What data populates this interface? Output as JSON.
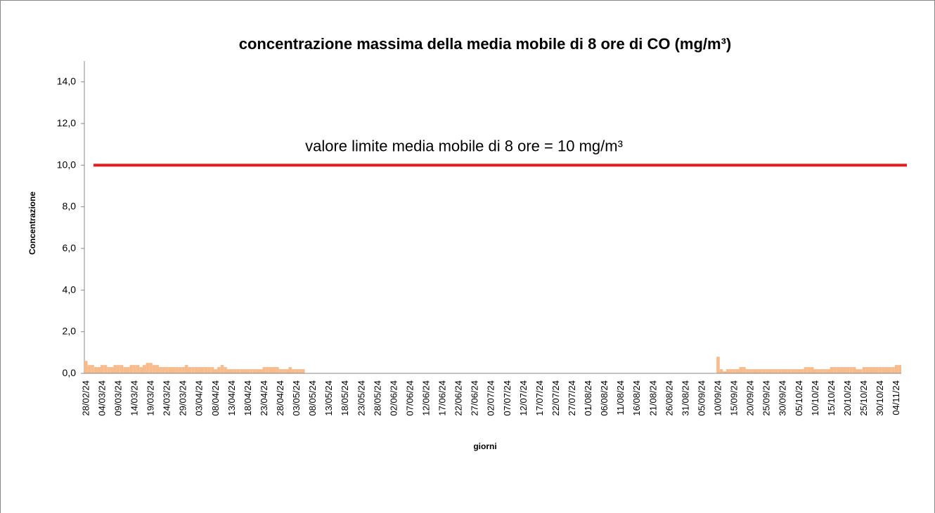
{
  "chart_data": {
    "type": "bar",
    "title": "concentrazione massima della media mobile di 8 ore di CO (mg/m³)",
    "x_label": "giorni",
    "y_label": "Concentrazione",
    "color": "#f8bc8c",
    "ylim": [
      0,
      15
    ],
    "yticks": [
      {
        "value": 0,
        "label": "0,0"
      },
      {
        "value": 2,
        "label": "2,0"
      },
      {
        "value": 4,
        "label": "4,0"
      },
      {
        "value": 6,
        "label": "6,0"
      },
      {
        "value": 8,
        "label": "8,0"
      },
      {
        "value": 10,
        "label": "10,0"
      },
      {
        "value": 12,
        "label": "12,0"
      },
      {
        "value": 14,
        "label": "14,0"
      }
    ],
    "limit": {
      "value": 10,
      "label": "valore limite media mobile di 8 ore = 10 mg/m³",
      "color": "#e41a1c"
    },
    "categories": [
      "28/02/24",
      null,
      null,
      null,
      null,
      "04/03/24",
      null,
      null,
      null,
      null,
      "09/03/24",
      null,
      null,
      null,
      null,
      "14/03/24",
      null,
      null,
      null,
      null,
      "19/03/24",
      null,
      null,
      null,
      null,
      "24/03/24",
      null,
      null,
      null,
      null,
      "29/03/24",
      null,
      null,
      null,
      null,
      "03/04/24",
      null,
      null,
      null,
      null,
      "08/04/24",
      null,
      null,
      null,
      null,
      "13/04/24",
      null,
      null,
      null,
      null,
      "18/04/24",
      null,
      null,
      null,
      null,
      "23/04/24",
      null,
      null,
      null,
      null,
      "28/04/24",
      null,
      null,
      null,
      null,
      "03/05/24",
      null,
      null,
      null,
      null,
      "08/05/24",
      null,
      null,
      null,
      null,
      "13/05/24",
      null,
      null,
      null,
      null,
      "18/05/24",
      null,
      null,
      null,
      null,
      "23/05/24",
      null,
      null,
      null,
      null,
      "28/05/24",
      null,
      null,
      null,
      null,
      "02/06/24",
      null,
      null,
      null,
      null,
      "07/06/24",
      null,
      null,
      null,
      null,
      "12/06/24",
      null,
      null,
      null,
      null,
      "17/06/24",
      null,
      null,
      null,
      null,
      "22/06/24",
      null,
      null,
      null,
      null,
      "27/06/24",
      null,
      null,
      null,
      null,
      "02/07/24",
      null,
      null,
      null,
      null,
      "07/07/24",
      null,
      null,
      null,
      null,
      "12/07/24",
      null,
      null,
      null,
      null,
      "17/07/24",
      null,
      null,
      null,
      null,
      "22/07/24",
      null,
      null,
      null,
      null,
      "27/07/24",
      null,
      null,
      null,
      null,
      "01/08/24",
      null,
      null,
      null,
      null,
      "06/08/24",
      null,
      null,
      null,
      null,
      "11/08/24",
      null,
      null,
      null,
      null,
      "16/08/24",
      null,
      null,
      null,
      null,
      "21/08/24",
      null,
      null,
      null,
      null,
      "26/08/24",
      null,
      null,
      null,
      null,
      "31/08/24",
      null,
      null,
      null,
      null,
      "05/09/24",
      null,
      null,
      null,
      null,
      "10/09/24",
      null,
      null,
      null,
      null,
      "15/09/24",
      null,
      null,
      null,
      null,
      "20/09/24",
      null,
      null,
      null,
      null,
      "25/09/24",
      null,
      null,
      null,
      null,
      "30/09/24",
      null,
      null,
      null,
      null,
      "05/10/24",
      null,
      null,
      null,
      null,
      "10/10/24",
      null,
      null,
      null,
      null,
      "15/10/24",
      null,
      null,
      null,
      null,
      "20/10/24",
      null,
      null,
      null,
      null,
      "25/10/24",
      null,
      null,
      null,
      null,
      "30/10/24",
      null,
      null,
      null,
      null,
      "04/11/24",
      null
    ],
    "values": [
      0.6,
      0.4,
      0.4,
      0.3,
      0.3,
      0.4,
      0.4,
      0.3,
      0.3,
      0.4,
      0.4,
      0.4,
      0.3,
      0.3,
      0.4,
      0.4,
      0.4,
      0.3,
      0.4,
      0.5,
      0.5,
      0.4,
      0.4,
      0.3,
      0.3,
      0.3,
      0.3,
      0.3,
      0.3,
      0.3,
      0.3,
      0.4,
      0.3,
      0.3,
      0.3,
      0.3,
      0.3,
      0.3,
      0.3,
      0.3,
      0.2,
      0.3,
      0.4,
      0.3,
      0.2,
      0.2,
      0.2,
      0.2,
      0.2,
      0.2,
      0.2,
      0.2,
      0.2,
      0.2,
      0.2,
      0.3,
      0.3,
      0.3,
      0.3,
      0.3,
      0.2,
      0.2,
      0.2,
      0.3,
      0.2,
      0.2,
      0.2,
      0.2,
      null,
      null,
      null,
      null,
      null,
      null,
      null,
      null,
      null,
      null,
      null,
      null,
      null,
      null,
      null,
      null,
      null,
      null,
      null,
      null,
      null,
      null,
      null,
      null,
      null,
      null,
      null,
      null,
      null,
      null,
      null,
      null,
      null,
      null,
      null,
      null,
      null,
      null,
      null,
      null,
      null,
      null,
      null,
      null,
      null,
      null,
      null,
      null,
      null,
      null,
      null,
      null,
      null,
      null,
      null,
      null,
      null,
      null,
      null,
      null,
      null,
      null,
      null,
      null,
      null,
      null,
      null,
      null,
      null,
      null,
      null,
      null,
      null,
      null,
      null,
      null,
      null,
      null,
      null,
      null,
      null,
      null,
      null,
      null,
      null,
      null,
      null,
      null,
      null,
      null,
      null,
      null,
      null,
      null,
      null,
      null,
      null,
      null,
      null,
      null,
      null,
      null,
      null,
      null,
      null,
      null,
      null,
      null,
      null,
      null,
      null,
      null,
      null,
      null,
      null,
      null,
      null,
      null,
      null,
      null,
      null,
      null,
      null,
      null,
      null,
      null,
      null,
      0.8,
      0.2,
      0.1,
      0.2,
      0.2,
      0.2,
      0.2,
      0.3,
      0.3,
      0.2,
      0.2,
      0.2,
      0.2,
      0.2,
      0.2,
      0.2,
      0.2,
      0.2,
      0.2,
      0.2,
      0.2,
      0.2,
      0.2,
      0.2,
      0.2,
      0.2,
      0.2,
      0.3,
      0.3,
      0.3,
      0.2,
      0.2,
      0.2,
      0.2,
      0.2,
      0.3,
      0.3,
      0.3,
      0.3,
      0.3,
      0.3,
      0.3,
      0.3,
      0.2,
      0.2,
      0.3,
      0.3,
      0.3,
      0.3,
      0.3,
      0.3,
      0.3,
      0.3,
      0.3,
      0.3,
      0.4,
      0.4
    ]
  }
}
